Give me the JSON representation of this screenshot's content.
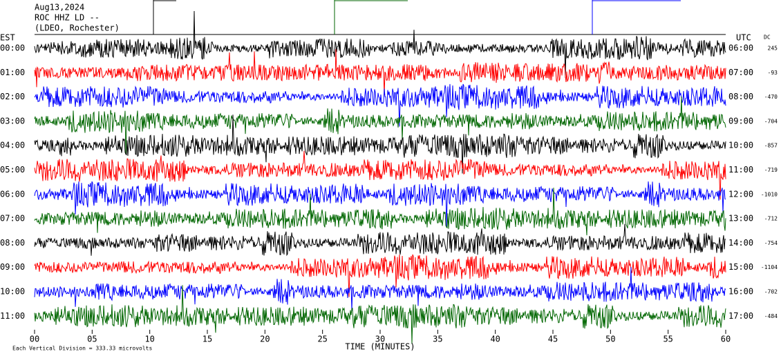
{
  "header": {
    "date": "Aug13,2024",
    "station": "ROC HHZ LD --",
    "network": "(LDEO, Rochester)"
  },
  "left_axis": {
    "title": "EST",
    "labels": [
      "00:00",
      "01:00",
      "02:00",
      "03:00",
      "04:00",
      "05:00",
      "06:00",
      "07:00",
      "08:00",
      "09:00",
      "10:00",
      "11:00"
    ]
  },
  "right_axis": {
    "title": "UTC",
    "labels": [
      "06:00",
      "07:00",
      "08:00",
      "09:00",
      "10:00",
      "11:00",
      "12:00",
      "13:00",
      "14:00",
      "15:00",
      "16:00",
      "17:00"
    ]
  },
  "dc": {
    "title": "DC",
    "values": [
      245,
      -93,
      -470,
      -704,
      -857,
      -719,
      -1010,
      -712,
      -754,
      -1104,
      -702,
      -484
    ]
  },
  "x_axis": {
    "title": "TIME (MINUTES)",
    "labels": [
      "00",
      "05",
      "10",
      "15",
      "20",
      "25",
      "30",
      "35",
      "40",
      "45",
      "50",
      "55",
      "60"
    ]
  },
  "footer": "Each Vertical Division = 333.33 microvolts"
}
